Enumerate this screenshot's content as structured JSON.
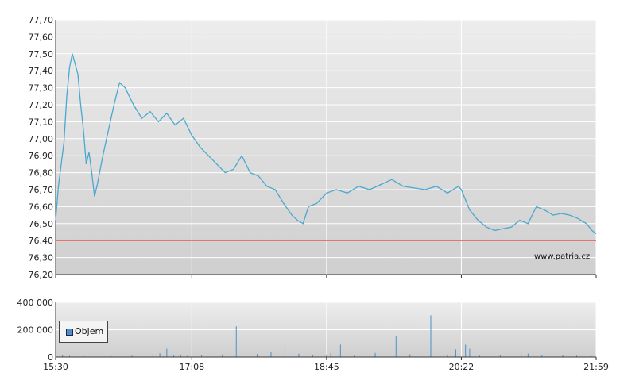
{
  "chart_data": [
    {
      "type": "line",
      "title": "",
      "xlabel": "",
      "ylabel": "",
      "ylim": [
        76.2,
        77.7
      ],
      "yticks": [
        "77,70",
        "77,60",
        "77,50",
        "77,40",
        "77,30",
        "77,20",
        "77,10",
        "77,00",
        "76,90",
        "76,80",
        "76,70",
        "76,60",
        "76,50",
        "76,40",
        "76,30",
        "76,20"
      ],
      "xticks": [
        "15:30",
        "17:08",
        "18:45",
        "20:22",
        "21:59"
      ],
      "grid": true,
      "reference_line": {
        "value": 76.4,
        "color": "#e05050"
      },
      "series": [
        {
          "color": "#4aa8d0",
          "points": [
            [
              "15:30",
              76.52
            ],
            [
              "15:32",
              76.72
            ],
            [
              "15:34",
              76.85
            ],
            [
              "15:36",
              76.98
            ],
            [
              "15:38",
              77.25
            ],
            [
              "15:40",
              77.42
            ],
            [
              "15:42",
              77.5
            ],
            [
              "15:44",
              77.44
            ],
            [
              "15:46",
              77.38
            ],
            [
              "15:48",
              77.2
            ],
            [
              "15:50",
              77.05
            ],
            [
              "15:52",
              76.85
            ],
            [
              "15:54",
              76.92
            ],
            [
              "15:56",
              76.8
            ],
            [
              "15:58",
              76.66
            ],
            [
              "16:00",
              76.73
            ],
            [
              "16:04",
              76.9
            ],
            [
              "16:08",
              77.05
            ],
            [
              "16:12",
              77.2
            ],
            [
              "16:16",
              77.33
            ],
            [
              "16:20",
              77.3
            ],
            [
              "16:26",
              77.2
            ],
            [
              "16:32",
              77.12
            ],
            [
              "16:38",
              77.16
            ],
            [
              "16:44",
              77.1
            ],
            [
              "16:50",
              77.15
            ],
            [
              "16:56",
              77.08
            ],
            [
              "17:02",
              77.12
            ],
            [
              "17:08",
              77.02
            ],
            [
              "17:14",
              76.95
            ],
            [
              "17:20",
              76.9
            ],
            [
              "17:26",
              76.85
            ],
            [
              "17:32",
              76.8
            ],
            [
              "17:38",
              76.82
            ],
            [
              "17:44",
              76.9
            ],
            [
              "17:50",
              76.8
            ],
            [
              "17:56",
              76.78
            ],
            [
              "18:02",
              76.72
            ],
            [
              "18:08",
              76.7
            ],
            [
              "18:14",
              76.62
            ],
            [
              "18:20",
              76.55
            ],
            [
              "18:24",
              76.52
            ],
            [
              "18:28",
              76.5
            ],
            [
              "18:32",
              76.6
            ],
            [
              "18:38",
              76.62
            ],
            [
              "18:45",
              76.68
            ],
            [
              "18:52",
              76.7
            ],
            [
              "19:00",
              76.68
            ],
            [
              "19:08",
              76.72
            ],
            [
              "19:16",
              76.7
            ],
            [
              "19:24",
              76.73
            ],
            [
              "19:32",
              76.76
            ],
            [
              "19:40",
              76.72
            ],
            [
              "19:48",
              76.71
            ],
            [
              "19:56",
              76.7
            ],
            [
              "20:04",
              76.72
            ],
            [
              "20:12",
              76.68
            ],
            [
              "20:20",
              76.72
            ],
            [
              "20:22",
              76.7
            ],
            [
              "20:28",
              76.58
            ],
            [
              "20:34",
              76.52
            ],
            [
              "20:40",
              76.48
            ],
            [
              "20:46",
              76.46
            ],
            [
              "20:52",
              76.47
            ],
            [
              "20:58",
              76.48
            ],
            [
              "21:04",
              76.52
            ],
            [
              "21:10",
              76.5
            ],
            [
              "21:16",
              76.6
            ],
            [
              "21:22",
              76.58
            ],
            [
              "21:28",
              76.55
            ],
            [
              "21:34",
              76.56
            ],
            [
              "21:40",
              76.55
            ],
            [
              "21:46",
              76.53
            ],
            [
              "21:52",
              76.5
            ],
            [
              "21:56",
              76.46
            ],
            [
              "21:59",
              76.44
            ]
          ]
        }
      ]
    },
    {
      "type": "bar",
      "title": "",
      "xlabel": "",
      "ylabel": "",
      "ylim": [
        0,
        400000
      ],
      "yticks": [
        "400 000",
        "200 000",
        "0"
      ],
      "xticks": [
        "15:30",
        "17:08",
        "18:45",
        "20:22",
        "21:59"
      ],
      "grid": true,
      "legend": {
        "label": "Objem",
        "placement": "bottom-left"
      },
      "series": [
        {
          "name": "Objem",
          "color": "#4a90c8",
          "bars": [
            [
              "15:30",
              15000
            ],
            [
              "15:35",
              12000
            ],
            [
              "15:40",
              8000
            ],
            [
              "15:50",
              6000
            ],
            [
              "16:10",
              5000
            ],
            [
              "16:25",
              10000
            ],
            [
              "16:40",
              22000
            ],
            [
              "16:45",
              28000
            ],
            [
              "16:50",
              60000
            ],
            [
              "16:55",
              12000
            ],
            [
              "17:00",
              18000
            ],
            [
              "17:05",
              15000
            ],
            [
              "17:15",
              12000
            ],
            [
              "17:30",
              20000
            ],
            [
              "17:40",
              225000
            ],
            [
              "17:55",
              22000
            ],
            [
              "18:05",
              35000
            ],
            [
              "18:15",
              80000
            ],
            [
              "18:25",
              25000
            ],
            [
              "18:35",
              15000
            ],
            [
              "18:45",
              18000
            ],
            [
              "18:48",
              28000
            ],
            [
              "18:55",
              90000
            ],
            [
              "19:05",
              15000
            ],
            [
              "19:20",
              30000
            ],
            [
              "19:35",
              150000
            ],
            [
              "19:45",
              20000
            ],
            [
              "20:00",
              305000
            ],
            [
              "20:12",
              18000
            ],
            [
              "20:18",
              55000
            ],
            [
              "20:25",
              90000
            ],
            [
              "20:28",
              60000
            ],
            [
              "20:35",
              15000
            ],
            [
              "20:50",
              12000
            ],
            [
              "21:05",
              40000
            ],
            [
              "21:10",
              25000
            ],
            [
              "21:20",
              15000
            ],
            [
              "21:35",
              12000
            ],
            [
              "21:45",
              10000
            ],
            [
              "21:55",
              8000
            ]
          ]
        }
      ]
    }
  ],
  "watermark": "www.patria.cz",
  "legend": {
    "label": "Objem"
  }
}
